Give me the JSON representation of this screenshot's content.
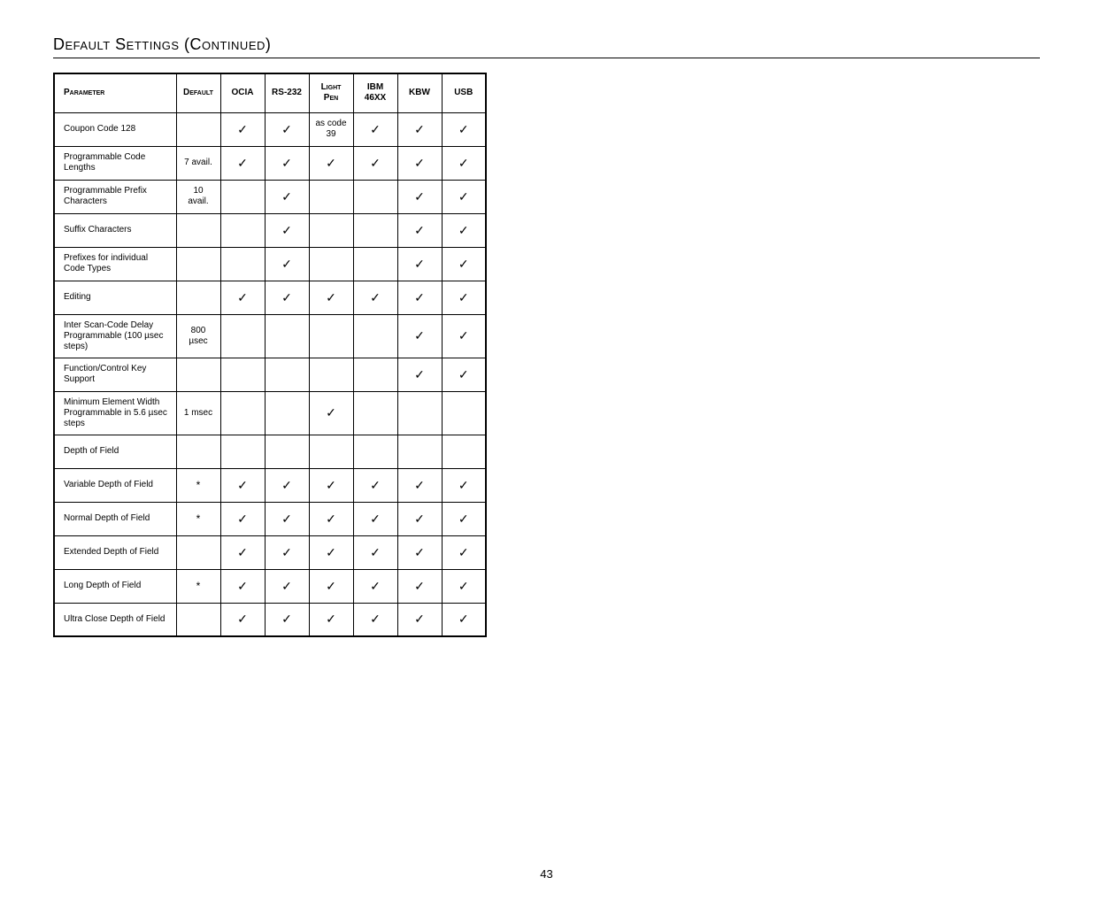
{
  "title": "Default Settings (Continued)",
  "pageNumber": "43",
  "check": "✓",
  "star": "*",
  "headers": {
    "parameter": "Parameter",
    "default": "Default",
    "ocia": "OCIA",
    "rs232": "RS-232",
    "lightpen": "Light Pen",
    "ibm46xx": "IBM 46XX",
    "kbw": "KBW",
    "usb": "USB"
  },
  "rows": [
    {
      "param": "Coupon Code 128",
      "default": "",
      "ocia": "✓",
      "rs232": "✓",
      "lightpen": "as code 39",
      "ibm46xx": "✓",
      "kbw": "✓",
      "usb": "✓"
    },
    {
      "param": "Programmable Code Lengths",
      "default": "7 avail.",
      "ocia": "✓",
      "rs232": "✓",
      "lightpen": "✓",
      "ibm46xx": "✓",
      "kbw": "✓",
      "usb": "✓"
    },
    {
      "param": "Programmable Prefix Characters",
      "default": "10 avail.",
      "ocia": "",
      "rs232": "✓",
      "lightpen": "",
      "ibm46xx": "",
      "kbw": "✓",
      "usb": "✓"
    },
    {
      "param": "Suffix Characters",
      "default": "",
      "ocia": "",
      "rs232": "✓",
      "lightpen": "",
      "ibm46xx": "",
      "kbw": "✓",
      "usb": "✓"
    },
    {
      "param": "Prefixes for individual Code Types",
      "default": "",
      "ocia": "",
      "rs232": "✓",
      "lightpen": "",
      "ibm46xx": "",
      "kbw": "✓",
      "usb": "✓"
    },
    {
      "param": "Editing",
      "default": "",
      "ocia": "✓",
      "rs232": "✓",
      "lightpen": "✓",
      "ibm46xx": "✓",
      "kbw": "✓",
      "usb": "✓"
    },
    {
      "param": "Inter Scan-Code Delay Programmable (100 µsec steps)",
      "default": "800 µsec",
      "ocia": "",
      "rs232": "",
      "lightpen": "",
      "ibm46xx": "",
      "kbw": "✓",
      "usb": "✓"
    },
    {
      "param": "Function/Control Key Support",
      "default": "",
      "ocia": "",
      "rs232": "",
      "lightpen": "",
      "ibm46xx": "",
      "kbw": "✓",
      "usb": "✓"
    },
    {
      "param": "Minimum Element Width Programmable in 5.6 µsec steps",
      "default": "1 msec",
      "ocia": "",
      "rs232": "",
      "lightpen": "✓",
      "ibm46xx": "",
      "kbw": "",
      "usb": ""
    },
    {
      "param": "Depth of Field",
      "default": "",
      "ocia": "",
      "rs232": "",
      "lightpen": "",
      "ibm46xx": "",
      "kbw": "",
      "usb": ""
    },
    {
      "param": "Variable Depth of Field",
      "default": "*",
      "ocia": "✓",
      "rs232": "✓",
      "lightpen": "✓",
      "ibm46xx": "✓",
      "kbw": "✓",
      "usb": "✓"
    },
    {
      "param": "Normal Depth of Field",
      "default": "*",
      "ocia": "✓",
      "rs232": "✓",
      "lightpen": "✓",
      "ibm46xx": "✓",
      "kbw": "✓",
      "usb": "✓"
    },
    {
      "param": "Extended Depth of Field",
      "default": "",
      "ocia": "✓",
      "rs232": "✓",
      "lightpen": "✓",
      "ibm46xx": "✓",
      "kbw": "✓",
      "usb": "✓"
    },
    {
      "param": "Long Depth of Field",
      "default": "*",
      "ocia": "✓",
      "rs232": "✓",
      "lightpen": "✓",
      "ibm46xx": "✓",
      "kbw": "✓",
      "usb": "✓"
    },
    {
      "param": "Ultra Close Depth of Field",
      "default": "",
      "ocia": "✓",
      "rs232": "✓",
      "lightpen": "✓",
      "ibm46xx": "✓",
      "kbw": "✓",
      "usb": "✓"
    }
  ]
}
